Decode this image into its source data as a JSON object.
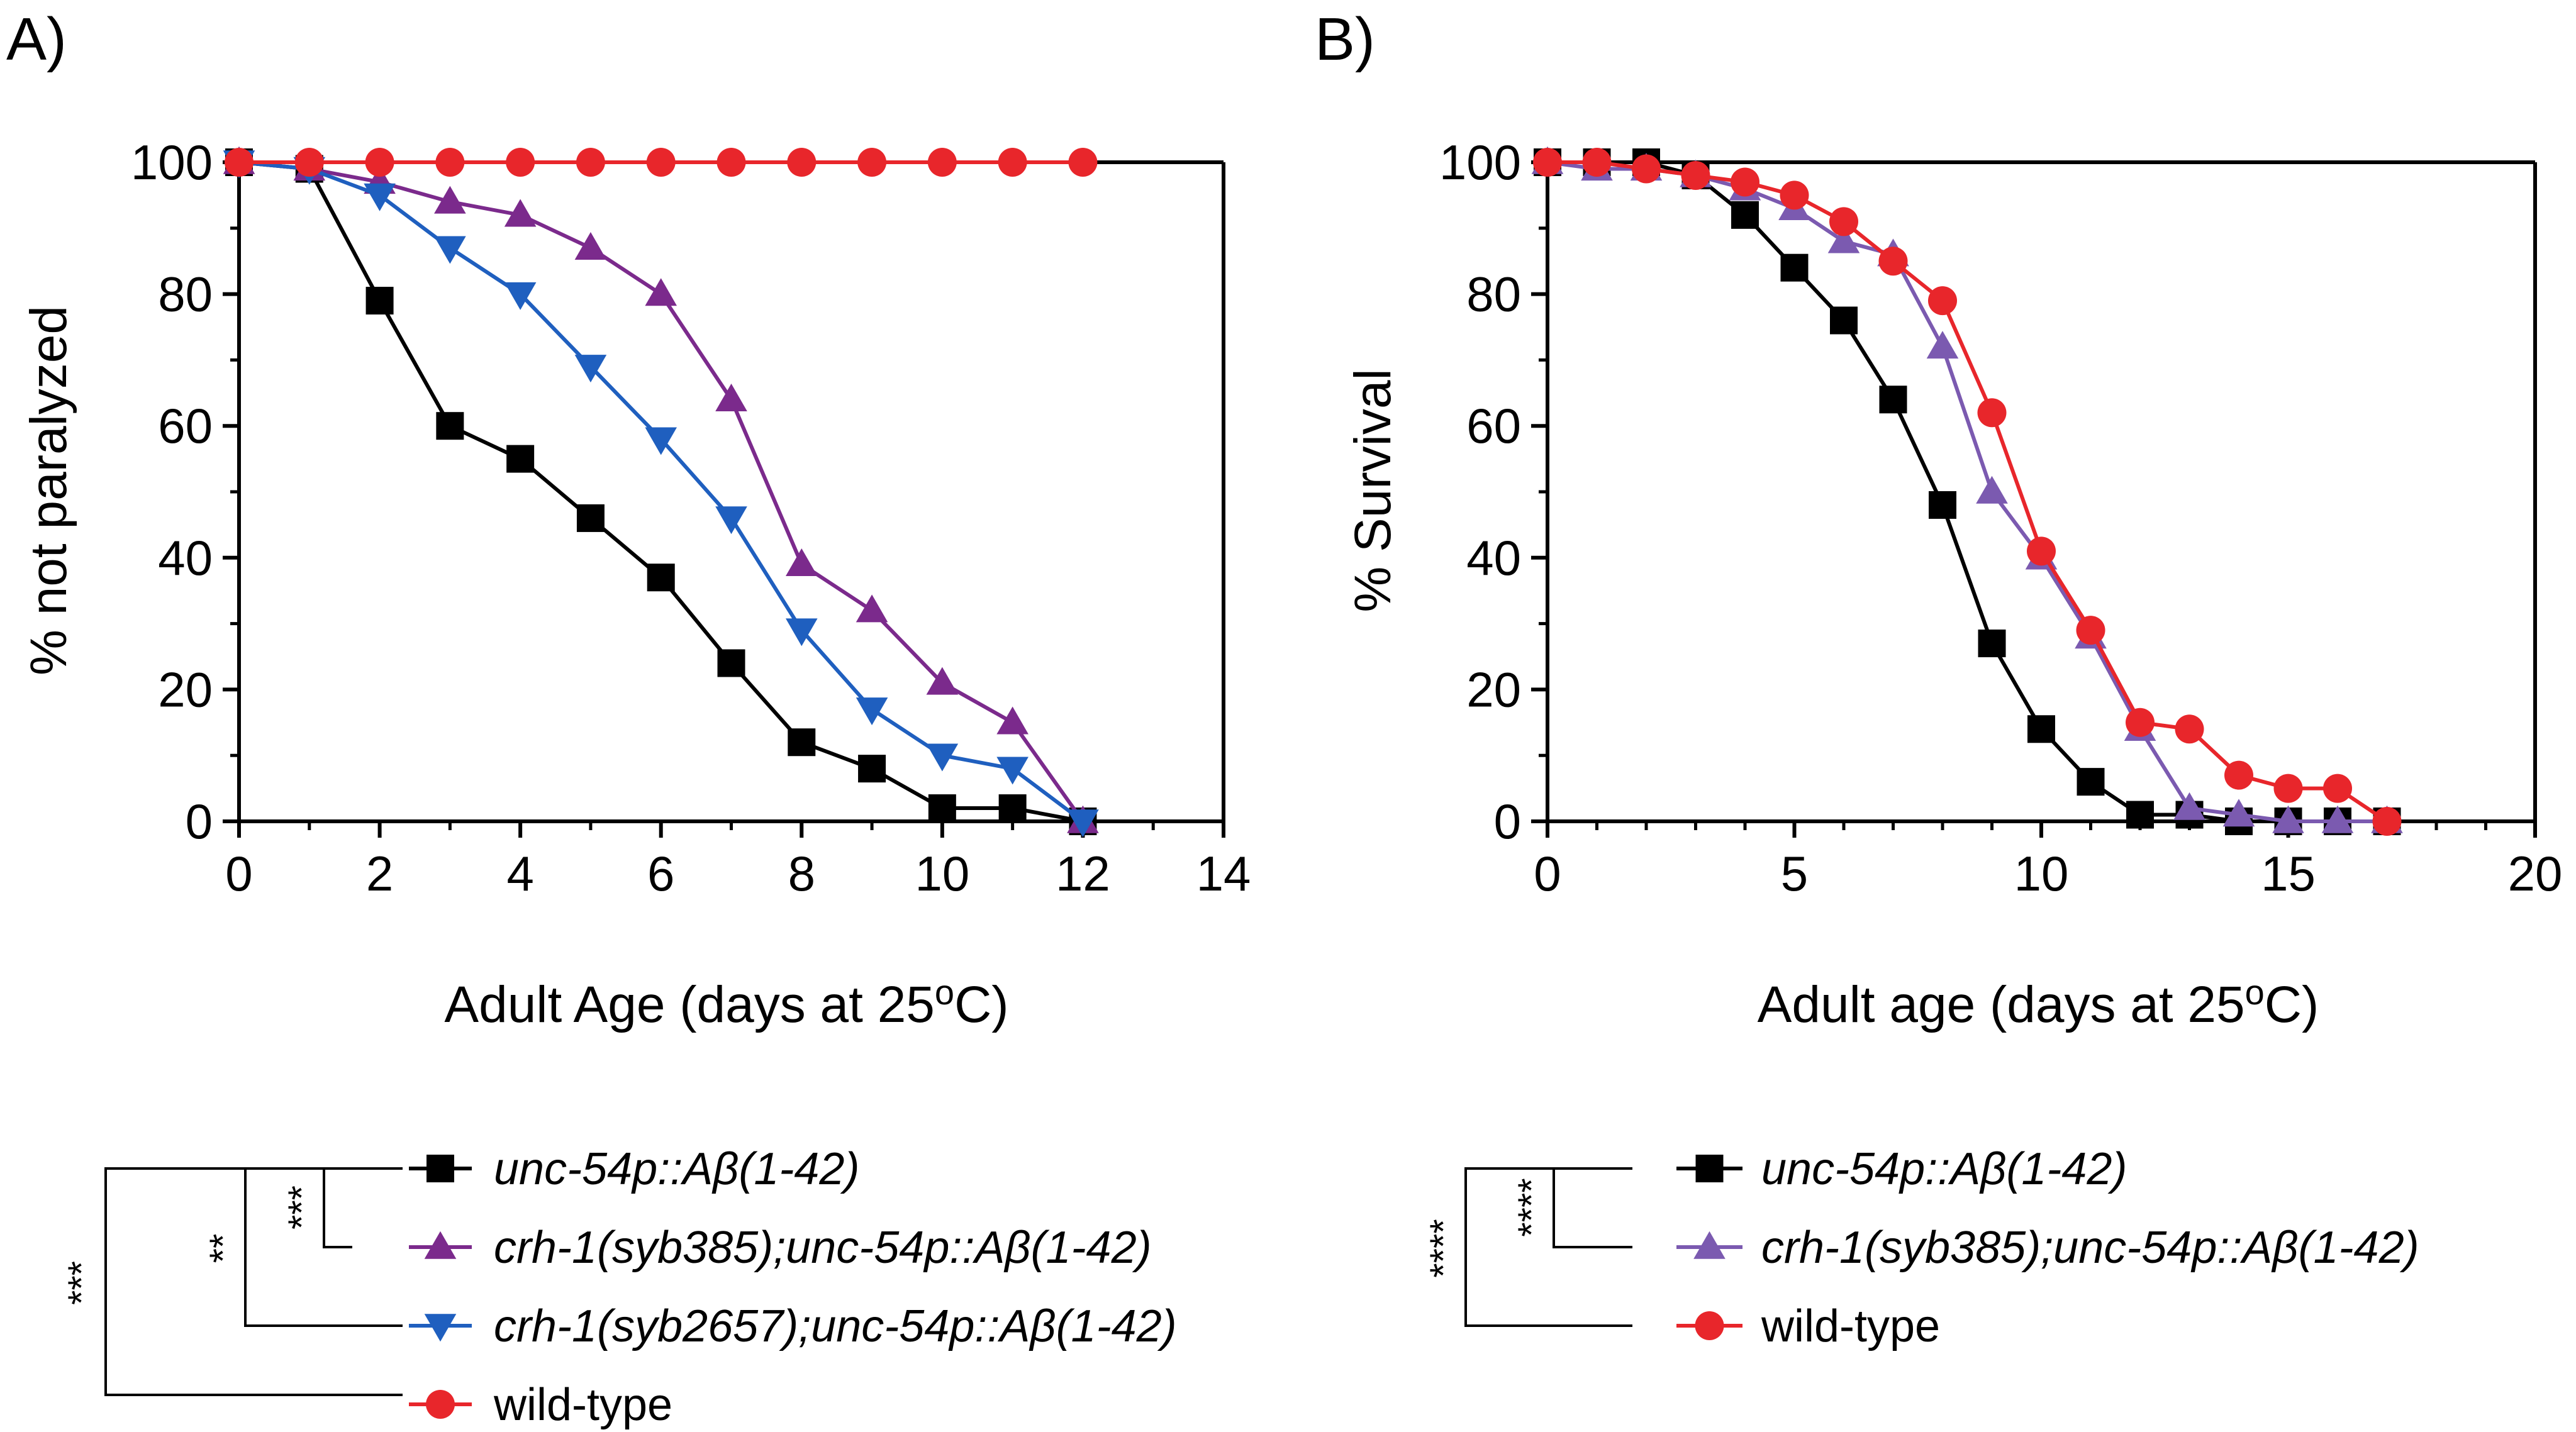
{
  "chart_data": [
    {
      "panel": "A)",
      "type": "line",
      "xlabel": "Adult Age (days at 25oC)",
      "ylabel": "% not paralyzed",
      "xlim": [
        0,
        14
      ],
      "ylim": [
        0,
        100
      ],
      "xticks": [
        "0",
        "2",
        "4",
        "6",
        "8",
        "10",
        "12",
        "14"
      ],
      "yticks": [
        "0",
        "20",
        "40",
        "60",
        "80",
        "100"
      ],
      "series": [
        {
          "name": "unc-54p::Aβ(1-42)",
          "color": "#000000",
          "marker": "square",
          "x": [
            0,
            1,
            2,
            3,
            4,
            5,
            6,
            7,
            8,
            9,
            10,
            11,
            12
          ],
          "values": [
            100,
            99,
            79,
            60,
            55,
            46,
            37,
            24,
            12,
            8,
            2,
            2,
            0
          ]
        },
        {
          "name": "crh-1(syb385);unc-54p::Aβ(1-42)",
          "color": "#7B2A8C",
          "marker": "triangle-up",
          "x": [
            0,
            1,
            2,
            3,
            4,
            5,
            6,
            7,
            8,
            9,
            10,
            11,
            12
          ],
          "values": [
            100,
            99,
            97,
            94,
            92,
            87,
            80,
            64,
            39,
            32,
            21,
            15,
            0
          ]
        },
        {
          "name": "crh-1(syb2657);unc-54p::Aβ(1-42)",
          "color": "#1F5FBF",
          "marker": "triangle-down",
          "x": [
            0,
            1,
            2,
            3,
            4,
            5,
            6,
            7,
            8,
            9,
            10,
            11,
            12
          ],
          "values": [
            100,
            99,
            95,
            87,
            80,
            69,
            58,
            46,
            29,
            17,
            10,
            8,
            0
          ]
        },
        {
          "name": "wild-type",
          "color": "#E8262B",
          "marker": "circle",
          "x": [
            0,
            1,
            2,
            3,
            4,
            5,
            6,
            7,
            8,
            9,
            10,
            11,
            12
          ],
          "values": [
            100,
            100,
            100,
            100,
            100,
            100,
            100,
            100,
            100,
            100,
            100,
            100,
            100
          ]
        }
      ],
      "significance": [
        "***",
        "**",
        "***"
      ]
    },
    {
      "panel": "B)",
      "type": "line",
      "xlabel": "Adult age (days at 25oC)",
      "ylabel": "% Survival",
      "xlim": [
        0,
        20
      ],
      "ylim": [
        0,
        100
      ],
      "xticks": [
        "0",
        "5",
        "10",
        "15",
        "20"
      ],
      "yticks": [
        "0",
        "20",
        "40",
        "60",
        "80",
        "100"
      ],
      "series": [
        {
          "name": "unc-54p::Aβ(1-42)",
          "color": "#000000",
          "marker": "square",
          "x": [
            0,
            1,
            2,
            3,
            4,
            5,
            6,
            7,
            8,
            9,
            10,
            11,
            12,
            13,
            14,
            15,
            16,
            17
          ],
          "values": [
            100,
            100,
            100,
            98,
            92,
            84,
            76,
            64,
            48,
            27,
            14,
            6,
            1,
            1,
            0,
            0,
            0,
            0
          ]
        },
        {
          "name": "crh-1(syb385);unc-54p::Aβ(1-42)",
          "color": "#7B5AB0",
          "marker": "triangle-up",
          "x": [
            0,
            1,
            2,
            3,
            4,
            5,
            6,
            7,
            8,
            9,
            10,
            11,
            12,
            13,
            14,
            15,
            16,
            17
          ],
          "values": [
            100,
            99,
            99,
            98,
            96,
            93,
            88,
            86,
            72,
            50,
            40,
            28,
            14,
            2,
            1,
            0,
            0,
            0
          ]
        },
        {
          "name": "wild-type",
          "color": "#E8262B",
          "marker": "circle",
          "x": [
            0,
            1,
            2,
            3,
            4,
            5,
            6,
            7,
            8,
            9,
            10,
            11,
            12,
            13,
            14,
            15,
            16,
            17
          ],
          "values": [
            100,
            100,
            99,
            98,
            97,
            95,
            91,
            85,
            79,
            62,
            41,
            29,
            15,
            14,
            7,
            5,
            5,
            0
          ]
        }
      ],
      "significance": [
        "****",
        "****"
      ]
    }
  ],
  "legend_a": [
    {
      "label": "unc-54p::Aβ(1-42)",
      "italic": true
    },
    {
      "label": "crh-1(syb385);unc-54p::Aβ(1-42)",
      "italic": true
    },
    {
      "label": "crh-1(syb2657);unc-54p::Aβ(1-42)",
      "italic": true
    },
    {
      "label": "wild-type",
      "italic": false
    }
  ],
  "legend_b": [
    {
      "label": "unc-54p::Aβ(1-42)",
      "italic": true
    },
    {
      "label": "crh-1(syb385);unc-54p::Aβ(1-42)",
      "italic": true
    },
    {
      "label": "wild-type",
      "italic": false
    }
  ]
}
